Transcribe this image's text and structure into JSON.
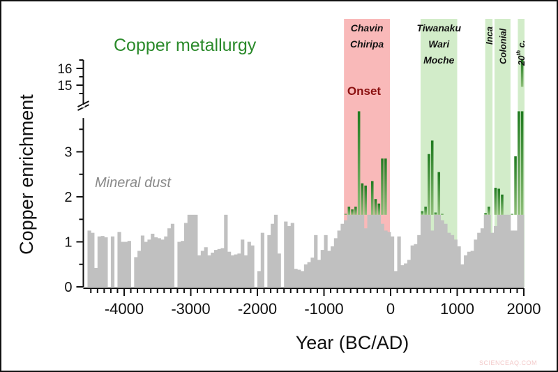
{
  "chart_data": {
    "type": "bar",
    "title": "Copper metallurgy",
    "xlabel": "Year (BC/AD)",
    "ylabel": "Copper enrichment",
    "xlim": [
      -4550,
      2000
    ],
    "ylim": [
      0,
      3.7
    ],
    "ylim_break": [
      15,
      16.5
    ],
    "x_ticks": [
      -4000,
      -3000,
      -2000,
      -1000,
      0,
      1000,
      2000
    ],
    "x_tick_labels": [
      "-4000",
      "-3000",
      "-2000",
      "-1000",
      "0",
      "1000",
      "2000"
    ],
    "y_ticks": [
      0,
      1,
      2,
      3
    ],
    "y_tick_labels": [
      "0",
      "1",
      "2",
      "3"
    ],
    "y_break_ticks": [
      15,
      16
    ],
    "y_break_tick_labels": [
      "15",
      "16"
    ],
    "grid": false,
    "bin_width_years": 50,
    "mineral_dust_cap": 1.6,
    "annotations": {
      "series_label_dust": "Mineral dust",
      "series_label_copper": "Copper metallurgy",
      "onset_label": "Onset"
    },
    "periods": [
      {
        "name": "Chavin Chiripa",
        "lines": [
          "Chavin",
          "Chiripa"
        ],
        "start": -700,
        "end": -10,
        "color": "#f9b9b9",
        "orientation": "horizontal"
      },
      {
        "name": "Tiwanaku Wari Moche",
        "lines": [
          "Tiwanaku",
          "Wari",
          "Moche"
        ],
        "start": 450,
        "end": 1000,
        "color": "#d2ecc9",
        "orientation": "horizontal"
      },
      {
        "name": "Inca",
        "lines": [
          "Inca"
        ],
        "start": 1420,
        "end": 1530,
        "color": "#d2ecc9",
        "orientation": "vertical"
      },
      {
        "name": "Colonial",
        "lines": [
          "Colonial"
        ],
        "start": 1560,
        "end": 1800,
        "color": "#d2ecc9",
        "orientation": "vertical"
      },
      {
        "name": "20th c.",
        "lines": [
          "20",
          "th",
          " c."
        ],
        "start": 1910,
        "end": 2010,
        "color": "#d2ecc9",
        "orientation": "vertical"
      }
    ],
    "series": [
      {
        "name": "Mineral dust",
        "color": "#c0c0c0",
        "x": [
          -4525,
          -4475,
          -4425,
          -4375,
          -4325,
          -4275,
          -4225,
          -4175,
          -4125,
          -4075,
          -4025,
          -3975,
          -3925,
          -3875,
          -3825,
          -3775,
          -3725,
          -3675,
          -3625,
          -3575,
          -3525,
          -3475,
          -3425,
          -3375,
          -3325,
          -3275,
          -3225,
          -3175,
          -3125,
          -3075,
          -3025,
          -2975,
          -2925,
          -2875,
          -2825,
          -2775,
          -2725,
          -2675,
          -2625,
          -2575,
          -2525,
          -2475,
          -2425,
          -2375,
          -2325,
          -2275,
          -2225,
          -2175,
          -2125,
          -2075,
          -2025,
          -1975,
          -1925,
          -1875,
          -1825,
          -1775,
          -1725,
          -1675,
          -1625,
          -1575,
          -1525,
          -1475,
          -1425,
          -1375,
          -1325,
          -1275,
          -1225,
          -1175,
          -1125,
          -1075,
          -1025,
          -975,
          -925,
          -875,
          -825,
          -775,
          -725,
          -675,
          -625,
          -575,
          -525,
          -475,
          -425,
          -375,
          -325,
          -275,
          -225,
          -175,
          -125,
          -75,
          -25,
          25,
          75,
          125,
          175,
          225,
          275,
          325,
          375,
          425,
          475,
          525,
          575,
          625,
          675,
          725,
          775,
          825,
          875,
          925,
          975,
          1025,
          1075,
          1125,
          1175,
          1225,
          1275,
          1325,
          1375,
          1425,
          1475,
          1525,
          1575,
          1625,
          1675,
          1725,
          1775,
          1825,
          1875,
          1925,
          1975
        ],
        "values": [
          1.25,
          1.2,
          0.42,
          1.12,
          1.13,
          1.1,
          0,
          1.12,
          0,
          1.22,
          1.0,
          1.0,
          1.02,
          0,
          0.66,
          0.8,
          1.14,
          1.0,
          1.05,
          1.18,
          1.1,
          1.08,
          1.05,
          1.12,
          1.3,
          1.4,
          0,
          1.0,
          1.02,
          1.42,
          2.0,
          1.6,
          1.64,
          0.7,
          0.8,
          0.88,
          0.7,
          0.76,
          0.82,
          0.84,
          0.86,
          1.6,
          0.78,
          0.7,
          0.72,
          0.74,
          1.05,
          0.7,
          1.0,
          0.92,
          0,
          0.35,
          1.2,
          0,
          1.15,
          1.4,
          2.0,
          0.74,
          0,
          1.45,
          1.35,
          1.42,
          0.4,
          0.38,
          0.35,
          0.5,
          0.55,
          0.65,
          1.15,
          0.6,
          0.82,
          1.15,
          0.8,
          0.9,
          1.08,
          1.25,
          1.4,
          1.48,
          1.6,
          1.6,
          1.6,
          1.6,
          1.6,
          1.3,
          1.6,
          1.6,
          1.6,
          1.6,
          1.4,
          1.25,
          1.22,
          1.12,
          0.35,
          1.12,
          0.48,
          0.52,
          0.6,
          0.92,
          0.95,
          1.15,
          1.6,
          1.6,
          1.6,
          1.25,
          1.6,
          1.6,
          1.48,
          1.4,
          1.2,
          1.15,
          1.05,
          0.9,
          0.5,
          0.7,
          0.78,
          0.8,
          1.05,
          1.2,
          1.3,
          1.6,
          1.6,
          1.2,
          1.35,
          1.6,
          1.6,
          1.6,
          1.6,
          1.25,
          1.25,
          1.6,
          1.6
        ]
      },
      {
        "name": "Copper metallurgy",
        "color": "#2e8b2e",
        "x": [
          -675,
          -625,
          -575,
          -525,
          -475,
          -425,
          -375,
          -325,
          -275,
          -225,
          -175,
          -125,
          -75,
          -25,
          475,
          525,
          575,
          625,
          675,
          725,
          775,
          825,
          875,
          1425,
          1475,
          1575,
          1625,
          1675,
          1725,
          1825,
          1875,
          1925,
          1975
        ],
        "values": [
          1.62,
          1.78,
          1.72,
          1.78,
          3.75,
          2.3,
          2.25,
          0,
          2.35,
          1.95,
          1.85,
          2.85,
          2.85,
          0,
          1.68,
          1.78,
          2.95,
          3.25,
          1.65,
          2.55,
          1.62,
          0,
          0,
          1.64,
          1.78,
          2.2,
          2.18,
          2.05,
          0,
          1.62,
          2.9,
          4.0,
          16.5
        ]
      }
    ]
  },
  "watermark": "SCIENCEAQ.COM"
}
